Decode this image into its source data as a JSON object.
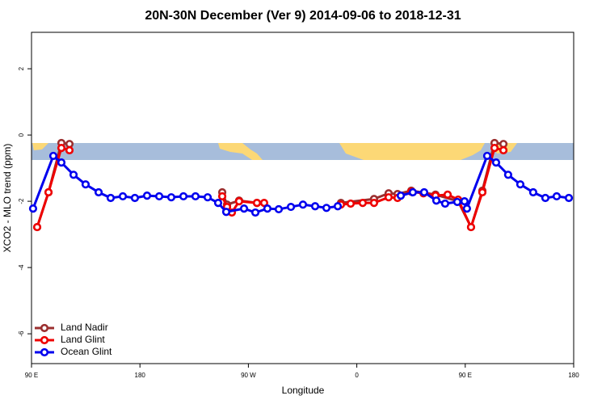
{
  "chart_data": {
    "type": "line",
    "title": "20N-30N December (Ver 9)   2014-09-06 to 2018-12-31",
    "x_label": "Longitude",
    "y_label": "XCO2 - MLO trend (ppm)",
    "xlim": [
      90,
      540
    ],
    "xticks": [
      {
        "value": 90,
        "label": "90 E"
      },
      180,
      {
        "value": 270,
        "label": "90 W"
      },
      {
        "value": 360,
        "label": "0"
      },
      {
        "value": 450,
        "label": "90 E"
      },
      {
        "value": 540,
        "label": "180"
      }
    ],
    "ylim": [
      -6.9,
      3.1
    ],
    "yticks": [
      -6,
      -4,
      -2,
      0,
      2
    ],
    "legend": "bottomleft",
    "series": [
      {
        "name": "Land Nadir",
        "color": "#9b2f2f",
        "x": [
          94.7,
          104.1,
          114.8,
          121.5,
          null,
          248.3,
          252.3,
          262.3,
          277.1,
          null,
          346.8,
          374.3,
          386.4,
          393.8,
          405.2,
          425.3,
          444.1,
          454.8,
          464.2,
          474.3,
          481.7
        ],
        "values": [
          -2.78,
          -1.73,
          -0.24,
          -0.27,
          null,
          -1.73,
          -2.1,
          -1.98,
          -2.05,
          null,
          -2.05,
          -1.93,
          -1.76,
          -1.78,
          -1.68,
          -1.8,
          -2.0,
          -2.78,
          -1.68,
          -0.24,
          -0.27
        ]
      },
      {
        "name": "Land Glint",
        "color": "#ee0000",
        "x": [
          94.7,
          104.1,
          114.8,
          121.5,
          null,
          248.3,
          252.3,
          256.3,
          262.3,
          277.1,
          283.1,
          null,
          346.8,
          354.9,
          364.9,
          374.3,
          386.4,
          393.8,
          405.2,
          415.3,
          425.3,
          435.4,
          444.1,
          454.8,
          464.2,
          474.3,
          481.7
        ],
        "values": [
          -2.78,
          -1.73,
          -0.39,
          -0.46,
          null,
          -1.85,
          -2.17,
          -2.34,
          -2.0,
          -2.05,
          -2.05,
          null,
          -2.1,
          -2.07,
          -2.05,
          -2.05,
          -1.88,
          -1.9,
          -1.71,
          -1.76,
          -1.83,
          -1.8,
          -1.95,
          -2.78,
          -1.73,
          -0.39,
          -0.46
        ]
      },
      {
        "name": "Ocean Glint",
        "color": "#0000ee",
        "x": [
          91.3,
          108.1,
          114.8,
          124.9,
          134.9,
          145.7,
          155.7,
          165.8,
          175.8,
          185.9,
          196,
          206,
          216.1,
          226.1,
          236.2,
          244.9,
          251.6,
          266.4,
          275.8,
          285.8,
          295.2,
          305.3,
          315.3,
          325.4,
          334.8,
          344.2,
          null,
          396.5,
          406.5,
          415.9,
          426,
          433.3,
          443.4,
          449.4,
          451.4,
          468.2,
          475.6,
          485.6,
          495.7,
          506.4,
          516.5,
          525.9,
          536
        ],
        "values": [
          -2.22,
          -0.63,
          -0.83,
          -1.2,
          -1.49,
          -1.73,
          -1.9,
          -1.85,
          -1.9,
          -1.83,
          -1.85,
          -1.88,
          -1.85,
          -1.85,
          -1.88,
          -2.05,
          -2.32,
          -2.22,
          -2.34,
          -2.22,
          -2.24,
          -2.17,
          -2.1,
          -2.15,
          -2.2,
          -2.15,
          null,
          -1.83,
          -1.73,
          -1.73,
          -1.98,
          -2.07,
          -2.02,
          -2.0,
          -2.22,
          -0.63,
          -0.83,
          -1.2,
          -1.49,
          -1.73,
          -1.9,
          -1.85,
          -1.9
        ]
      }
    ]
  }
}
